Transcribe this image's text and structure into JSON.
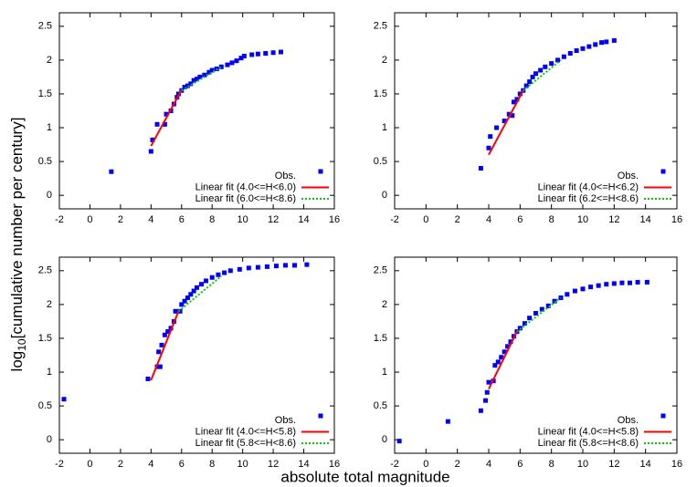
{
  "figure": {
    "xlabel": "absolute total magnitude",
    "ylabel": [
      "log",
      "10",
      "[cumulative number per century]"
    ]
  },
  "chart_data": [
    {
      "type": "scatter",
      "xlim": [
        -2,
        16
      ],
      "xticks": [
        -2,
        0,
        2,
        4,
        6,
        8,
        10,
        12,
        14,
        16
      ],
      "ylim": [
        -0.2,
        2.7
      ],
      "yticks": [
        0,
        0.5,
        1,
        1.5,
        2,
        2.5
      ],
      "legend": "lower right",
      "series": [
        {
          "name": "Obs.",
          "color": "#0000ff",
          "x": [
            1.4,
            4.0,
            4.1,
            4.4,
            4.9,
            5.0,
            5.3,
            5.5,
            5.7,
            5.8,
            6.0,
            6.2,
            6.4,
            6.6,
            6.8,
            7.0,
            7.2,
            7.5,
            7.8,
            8.0,
            8.3,
            8.6,
            9.0,
            9.3,
            9.6,
            9.9,
            10.1,
            10.6,
            11.0,
            11.5,
            12.0,
            12.5
          ],
          "values": [
            0.35,
            0.65,
            0.82,
            1.05,
            1.05,
            1.2,
            1.25,
            1.35,
            1.45,
            1.5,
            1.55,
            1.6,
            1.62,
            1.65,
            1.7,
            1.72,
            1.75,
            1.78,
            1.82,
            1.85,
            1.87,
            1.9,
            1.93,
            1.96,
            1.99,
            2.03,
            2.06,
            2.08,
            2.09,
            2.1,
            2.11,
            2.12
          ]
        },
        {
          "name": "Linear fit (4.0<=H<6.0)",
          "color": "#ff0000",
          "style": "solid",
          "x": [
            4.0,
            6.0
          ],
          "values": [
            0.73,
            1.56
          ]
        },
        {
          "name": "Linear fit (6.0<=H<8.6)",
          "color": "#00cc00",
          "style": "dotted",
          "x": [
            6.0,
            8.6
          ],
          "values": [
            1.55,
            1.9
          ]
        }
      ]
    },
    {
      "type": "scatter",
      "xlim": [
        -2,
        16
      ],
      "xticks": [
        -2,
        0,
        2,
        4,
        6,
        8,
        10,
        12,
        14,
        16
      ],
      "ylim": [
        -0.2,
        2.7
      ],
      "yticks": [
        0,
        0.5,
        1,
        1.5,
        2,
        2.5
      ],
      "legend": "lower right",
      "series": [
        {
          "name": "Obs.",
          "color": "#0000ff",
          "x": [
            3.5,
            4.0,
            4.1,
            4.5,
            5.0,
            5.3,
            5.5,
            5.6,
            5.8,
            6.0,
            6.2,
            6.4,
            6.6,
            6.8,
            7.0,
            7.3,
            7.6,
            8.0,
            8.4,
            8.8,
            9.2,
            9.6,
            10.0,
            10.4,
            10.8,
            11.2,
            11.5,
            12.0
          ],
          "values": [
            0.4,
            0.7,
            0.87,
            1.0,
            1.1,
            1.2,
            1.18,
            1.38,
            1.42,
            1.5,
            1.55,
            1.62,
            1.68,
            1.75,
            1.8,
            1.85,
            1.9,
            1.95,
            2.0,
            2.05,
            2.1,
            2.14,
            2.17,
            2.2,
            2.23,
            2.26,
            2.27,
            2.29
          ]
        },
        {
          "name": "Linear fit (4.0<=H<6.2)",
          "color": "#ff0000",
          "style": "solid",
          "x": [
            4.0,
            6.2
          ],
          "values": [
            0.6,
            1.55
          ]
        },
        {
          "name": "Linear fit (6.2<=H<8.6)",
          "color": "#00cc00",
          "style": "dotted",
          "x": [
            6.2,
            8.6
          ],
          "values": [
            1.55,
            2.0
          ]
        }
      ]
    },
    {
      "type": "scatter",
      "xlim": [
        -2,
        16
      ],
      "xticks": [
        -2,
        0,
        2,
        4,
        6,
        8,
        10,
        12,
        14,
        16
      ],
      "ylim": [
        -0.2,
        2.7
      ],
      "yticks": [
        0,
        0.5,
        1,
        1.5,
        2,
        2.5
      ],
      "legend": "lower right",
      "series": [
        {
          "name": "Obs.",
          "color": "#0000ff",
          "x": [
            -1.7,
            3.8,
            4.4,
            4.6,
            4.5,
            4.7,
            4.9,
            5.1,
            5.3,
            5.5,
            5.6,
            5.9,
            6.0,
            6.2,
            6.4,
            6.6,
            6.8,
            7.0,
            7.3,
            7.6,
            8.0,
            8.4,
            8.8,
            9.2,
            9.8,
            10.4,
            11.0,
            11.6,
            12.2,
            12.8,
            13.4,
            14.2
          ],
          "values": [
            0.6,
            0.9,
            1.08,
            1.08,
            1.3,
            1.4,
            1.55,
            1.6,
            1.65,
            1.75,
            1.9,
            1.9,
            2.0,
            2.05,
            2.1,
            2.15,
            2.2,
            2.25,
            2.3,
            2.35,
            2.4,
            2.44,
            2.47,
            2.5,
            2.52,
            2.54,
            2.55,
            2.56,
            2.57,
            2.58,
            2.58,
            2.59
          ]
        },
        {
          "name": "Linear fit (4.0<=H<5.8)",
          "color": "#ff0000",
          "style": "solid",
          "x": [
            4.0,
            5.8
          ],
          "values": [
            0.88,
            1.9
          ]
        },
        {
          "name": "Linear fit (5.8<=H<8.6)",
          "color": "#00cc00",
          "style": "dotted",
          "x": [
            5.8,
            8.6
          ],
          "values": [
            1.9,
            2.42
          ]
        }
      ]
    },
    {
      "type": "scatter",
      "xlim": [
        -2,
        16
      ],
      "xticks": [
        -2,
        0,
        2,
        4,
        6,
        8,
        10,
        12,
        14,
        16
      ],
      "ylim": [
        -0.2,
        2.7
      ],
      "yticks": [
        0,
        0.5,
        1,
        1.5,
        2,
        2.5
      ],
      "legend": "lower right",
      "series": [
        {
          "name": "Obs.",
          "color": "#0000ff",
          "x": [
            -1.7,
            1.4,
            3.5,
            3.8,
            3.9,
            4.0,
            4.3,
            4.4,
            4.6,
            4.8,
            5.0,
            5.2,
            5.4,
            5.6,
            5.8,
            6.0,
            6.3,
            6.6,
            7.0,
            7.4,
            7.8,
            8.2,
            8.6,
            9.0,
            9.5,
            10.0,
            10.5,
            11.0,
            11.5,
            12.0,
            12.5,
            13.0,
            13.5,
            14.1
          ],
          "values": [
            -0.02,
            0.27,
            0.43,
            0.58,
            0.7,
            0.85,
            0.87,
            1.1,
            1.15,
            1.22,
            1.3,
            1.38,
            1.45,
            1.53,
            1.6,
            1.65,
            1.72,
            1.8,
            1.87,
            1.93,
            1.98,
            2.05,
            2.1,
            2.15,
            2.2,
            2.23,
            2.26,
            2.28,
            2.3,
            2.31,
            2.32,
            2.32,
            2.33,
            2.33
          ]
        },
        {
          "name": "Linear fit (4.0<=H<5.8)",
          "color": "#ff0000",
          "style": "solid",
          "x": [
            4.0,
            5.8
          ],
          "values": [
            0.75,
            1.6
          ]
        },
        {
          "name": "Linear fit (5.8<=H<8.6)",
          "color": "#00cc00",
          "style": "dotted",
          "x": [
            5.8,
            8.6
          ],
          "values": [
            1.6,
            2.1
          ]
        }
      ]
    }
  ]
}
